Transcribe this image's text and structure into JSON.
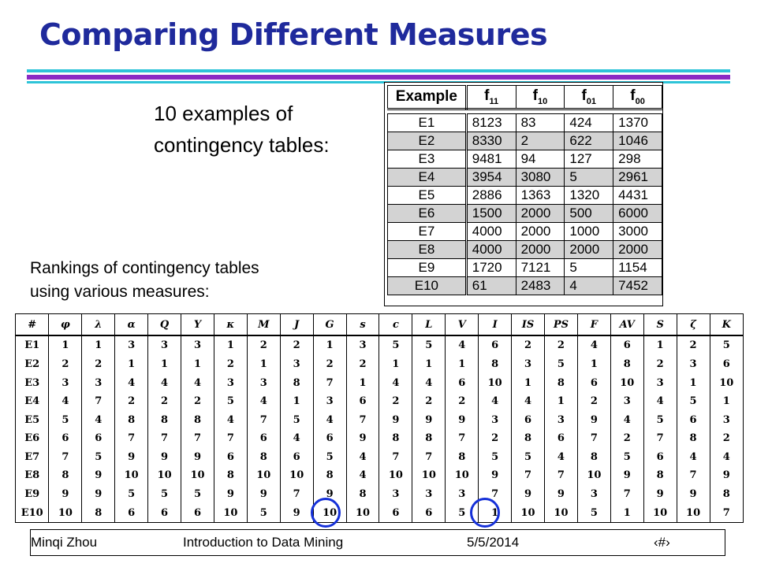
{
  "title": "Comparing Different Measures",
  "caption_line1": "10 examples of",
  "caption_line2": "contingency tables:",
  "rank_caption_line1": "Rankings of contingency tables",
  "rank_caption_line2": "using various measures:",
  "contingency": {
    "header": [
      "Example",
      "f11",
      "f10",
      "f01",
      "f00"
    ],
    "rows": [
      [
        "E1",
        "8123",
        "83",
        "424",
        "1370"
      ],
      [
        "E2",
        "8330",
        "2",
        "622",
        "1046"
      ],
      [
        "E3",
        "9481",
        "94",
        "127",
        "298"
      ],
      [
        "E4",
        "3954",
        "3080",
        "5",
        "2961"
      ],
      [
        "E5",
        "2886",
        "1363",
        "1320",
        "4431"
      ],
      [
        "E6",
        "1500",
        "2000",
        "500",
        "6000"
      ],
      [
        "E7",
        "4000",
        "2000",
        "1000",
        "3000"
      ],
      [
        "E8",
        "4000",
        "2000",
        "2000",
        "2000"
      ],
      [
        "E9",
        "1720",
        "7121",
        "5",
        "1154"
      ],
      [
        "E10",
        "61",
        "2483",
        "4",
        "7452"
      ]
    ]
  },
  "rankings": {
    "header": [
      "#",
      "φ",
      "λ",
      "α",
      "Q",
      "Y",
      "κ",
      "M",
      "J",
      "G",
      "s",
      "c",
      "L",
      "V",
      "I",
      "IS",
      "PS",
      "F",
      "AV",
      "S",
      "ζ",
      "K"
    ],
    "rows": [
      [
        "E1",
        "1",
        "1",
        "3",
        "3",
        "3",
        "1",
        "2",
        "2",
        "1",
        "3",
        "5",
        "5",
        "4",
        "6",
        "2",
        "2",
        "4",
        "6",
        "1",
        "2",
        "5"
      ],
      [
        "E2",
        "2",
        "2",
        "1",
        "1",
        "1",
        "2",
        "1",
        "3",
        "2",
        "2",
        "1",
        "1",
        "1",
        "8",
        "3",
        "5",
        "1",
        "8",
        "2",
        "3",
        "6"
      ],
      [
        "E3",
        "3",
        "3",
        "4",
        "4",
        "4",
        "3",
        "3",
        "8",
        "7",
        "1",
        "4",
        "4",
        "6",
        "10",
        "1",
        "8",
        "6",
        "10",
        "3",
        "1",
        "10"
      ],
      [
        "E4",
        "4",
        "7",
        "2",
        "2",
        "2",
        "5",
        "4",
        "1",
        "3",
        "6",
        "2",
        "2",
        "2",
        "4",
        "4",
        "1",
        "2",
        "3",
        "4",
        "5",
        "1"
      ],
      [
        "E5",
        "5",
        "4",
        "8",
        "8",
        "8",
        "4",
        "7",
        "5",
        "4",
        "7",
        "9",
        "9",
        "9",
        "3",
        "6",
        "3",
        "9",
        "4",
        "5",
        "6",
        "3"
      ],
      [
        "E6",
        "6",
        "6",
        "7",
        "7",
        "7",
        "7",
        "6",
        "4",
        "6",
        "9",
        "8",
        "8",
        "7",
        "2",
        "8",
        "6",
        "7",
        "2",
        "7",
        "8",
        "2"
      ],
      [
        "E7",
        "7",
        "5",
        "9",
        "9",
        "9",
        "6",
        "8",
        "6",
        "5",
        "4",
        "7",
        "7",
        "8",
        "5",
        "5",
        "4",
        "8",
        "5",
        "6",
        "4",
        "4"
      ],
      [
        "E8",
        "8",
        "9",
        "10",
        "10",
        "10",
        "8",
        "10",
        "10",
        "8",
        "4",
        "10",
        "10",
        "10",
        "9",
        "7",
        "7",
        "10",
        "9",
        "8",
        "7",
        "9"
      ],
      [
        "E9",
        "9",
        "9",
        "5",
        "5",
        "5",
        "9",
        "9",
        "7",
        "9",
        "8",
        "3",
        "3",
        "3",
        "7",
        "9",
        "9",
        "3",
        "7",
        "9",
        "9",
        "8"
      ],
      [
        "E10",
        "10",
        "8",
        "6",
        "6",
        "6",
        "10",
        "5",
        "9",
        "10",
        "10",
        "6",
        "6",
        "5",
        "1",
        "10",
        "10",
        "5",
        "1",
        "10",
        "10",
        "7"
      ]
    ]
  },
  "footer": {
    "author": "Minqi Zhou",
    "course": "Introduction to Data Mining",
    "date": "5/5/2014",
    "page": "‹#›"
  }
}
